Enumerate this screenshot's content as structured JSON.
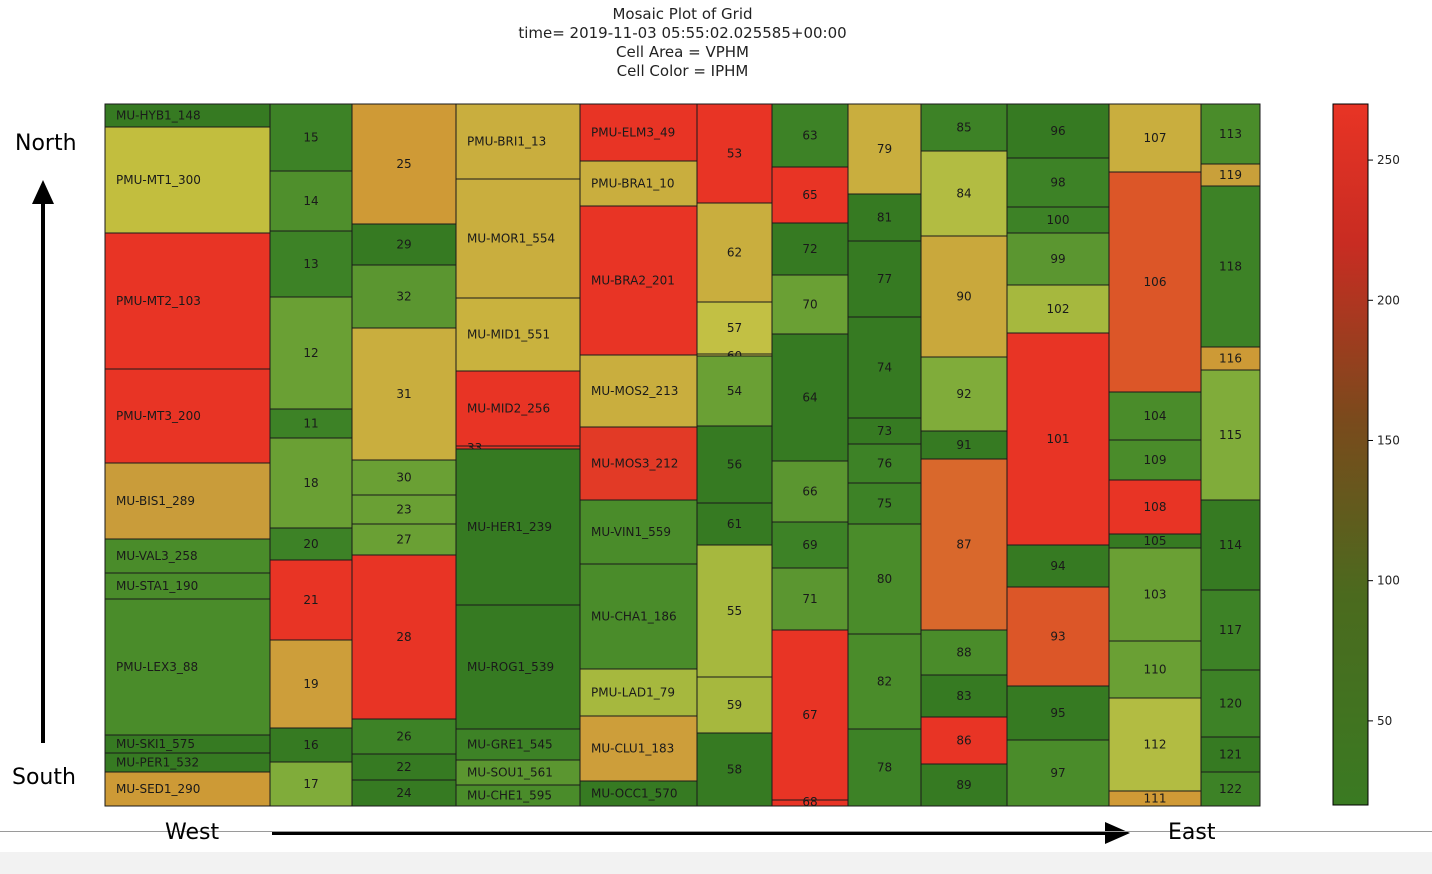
{
  "chart_data": {
    "type": "mosaic",
    "title_lines": [
      "Mosaic Plot of Grid",
      "time= 2019-11-03 05:55:02.025585+00:00",
      "Cell Area = VPHM",
      "Cell Color = IPHM"
    ],
    "colorbar": {
      "range": [
        20,
        270
      ],
      "ticks": [
        50,
        100,
        150,
        200,
        250
      ],
      "colors": [
        "#3a7a22",
        "#4b6a1e",
        "#7a4a1c",
        "#c82c22",
        "#e83425"
      ]
    },
    "columns": [
      {
        "cells": [
          {
            "label": "MU-HYB1_148",
            "color": "#367a22"
          },
          {
            "label": "PMU-MT1_300",
            "color": "#c2be3e"
          },
          {
            "label": "PMU-MT2_103",
            "color": "#e83425"
          },
          {
            "label": "PMU-MT3_200",
            "color": "#e83425"
          },
          {
            "label": "MU-BIS1_289",
            "color": "#c99c3a"
          },
          {
            "label": "MU-VAL3_258",
            "color": "#4a8c2a"
          },
          {
            "label": "MU-STA1_190",
            "color": "#4a8c2a"
          },
          {
            "label": "PMU-LEX3_88",
            "color": "#4a8c2a"
          },
          {
            "label": "MU-SKI1_575",
            "color": "#367a22"
          },
          {
            "label": "MU-PER1_532",
            "color": "#367a22"
          },
          {
            "label": "MU-SED1_290",
            "color": "#cd9a36"
          }
        ]
      },
      {
        "cells": [
          {
            "label": "15",
            "color": "#3d8226"
          },
          {
            "label": "14",
            "color": "#4f8f2c"
          },
          {
            "label": "13",
            "color": "#3d8226"
          },
          {
            "label": "12",
            "color": "#6aa034"
          },
          {
            "label": "11",
            "color": "#3d8226"
          },
          {
            "label": "18",
            "color": "#6aa034"
          },
          {
            "label": "20",
            "color": "#3d8226"
          },
          {
            "label": "21",
            "color": "#e83425"
          },
          {
            "label": "19",
            "color": "#cd9e3a"
          },
          {
            "label": "16",
            "color": "#367a22"
          },
          {
            "label": "17",
            "color": "#80ac3a"
          }
        ]
      },
      {
        "cells": [
          {
            "label": "25",
            "color": "#cf9a36"
          },
          {
            "label": "29",
            "color": "#367a22"
          },
          {
            "label": "32",
            "color": "#5b9630"
          },
          {
            "label": "31",
            "color": "#c9ae3e"
          },
          {
            "label": "30",
            "color": "#6aa034"
          },
          {
            "label": "23",
            "color": "#6aa034"
          },
          {
            "label": "27",
            "color": "#6aa034"
          },
          {
            "label": "28",
            "color": "#e83425"
          },
          {
            "label": "26",
            "color": "#3d8226"
          },
          {
            "label": "22",
            "color": "#367a22"
          },
          {
            "label": "24",
            "color": "#367a22"
          }
        ]
      },
      {
        "cells": [
          {
            "label": "PMU-BRI1_13",
            "color": "#c9ae3e"
          },
          {
            "label": "MU-MOR1_554",
            "color": "#c9ae3e"
          },
          {
            "label": "MU-MID1_551",
            "color": "#c9b23e"
          },
          {
            "label": "MU-MID2_256",
            "color": "#e83425"
          },
          {
            "label": "33",
            "color": "#e83425"
          },
          {
            "label": "MU-HER1_239",
            "color": "#367a22"
          },
          {
            "label": "MU-ROG1_539",
            "color": "#367a22"
          },
          {
            "label": "MU-GRE1_545",
            "color": "#3d8226"
          },
          {
            "label": "MU-SOU1_561",
            "color": "#5b9630"
          },
          {
            "label": "MU-CHE1_595",
            "color": "#4a8c2a"
          }
        ]
      },
      {
        "cells": [
          {
            "label": "PMU-ELM3_49",
            "color": "#e83425"
          },
          {
            "label": "PMU-BRA1_10",
            "color": "#c9ae3e"
          },
          {
            "label": "MU-BRA2_201",
            "color": "#e83425"
          },
          {
            "label": "MU-MOS2_213",
            "color": "#c9ae3e"
          },
          {
            "label": "MU-MOS3_212",
            "color": "#e23a26"
          },
          {
            "label": "MU-VIN1_559",
            "color": "#4a8c2a"
          },
          {
            "label": "MU-CHA1_186",
            "color": "#4a8c2a"
          },
          {
            "label": "PMU-LAD1_79",
            "color": "#a6b83e"
          },
          {
            "label": "MU-CLU1_183",
            "color": "#cd9e3a"
          },
          {
            "label": "MU-OCC1_570",
            "color": "#367a22"
          }
        ]
      },
      {
        "cells": [
          {
            "label": "53",
            "color": "#e83425"
          },
          {
            "label": "62",
            "color": "#c9ae3e"
          },
          {
            "label": "57",
            "color": "#c2c044"
          },
          {
            "label": "60",
            "color": "#c2c044"
          },
          {
            "label": "54",
            "color": "#6aa034"
          },
          {
            "label": "56",
            "color": "#367a22"
          },
          {
            "label": "61",
            "color": "#367a22"
          },
          {
            "label": "55",
            "color": "#a6b83e"
          },
          {
            "label": "59",
            "color": "#a6b83e"
          },
          {
            "label": "58",
            "color": "#367a22"
          }
        ]
      },
      {
        "cells": [
          {
            "label": "63",
            "color": "#3d8226"
          },
          {
            "label": "65",
            "color": "#e83425"
          },
          {
            "label": "72",
            "color": "#367a22"
          },
          {
            "label": "70",
            "color": "#6aa034"
          },
          {
            "label": "64",
            "color": "#367a22"
          },
          {
            "label": "66",
            "color": "#5b9630"
          },
          {
            "label": "69",
            "color": "#3d8226"
          },
          {
            "label": "71",
            "color": "#5b9630"
          },
          {
            "label": "67",
            "color": "#e83425"
          },
          {
            "label": "68",
            "color": "#e83425"
          }
        ]
      },
      {
        "cells": [
          {
            "label": "79",
            "color": "#c9ae3e"
          },
          {
            "label": "81",
            "color": "#367a22"
          },
          {
            "label": "77",
            "color": "#367a22"
          },
          {
            "label": "74",
            "color": "#367a22"
          },
          {
            "label": "73",
            "color": "#367a22"
          },
          {
            "label": "76",
            "color": "#3d8226"
          },
          {
            "label": "75",
            "color": "#3d8226"
          },
          {
            "label": "80",
            "color": "#4a8c2a"
          },
          {
            "label": "82",
            "color": "#4a8c2a"
          },
          {
            "label": "78",
            "color": "#3d8226"
          }
        ]
      },
      {
        "cells": [
          {
            "label": "85",
            "color": "#3d8226"
          },
          {
            "label": "84",
            "color": "#b2bc42"
          },
          {
            "label": "90",
            "color": "#c9a83c"
          },
          {
            "label": "92",
            "color": "#80ac3a"
          },
          {
            "label": "91",
            "color": "#367a22"
          },
          {
            "label": "87",
            "color": "#d9682c"
          },
          {
            "label": "88",
            "color": "#4a8c2a"
          },
          {
            "label": "83",
            "color": "#367a22"
          },
          {
            "label": "86",
            "color": "#e83425"
          },
          {
            "label": "89",
            "color": "#367a22"
          }
        ]
      },
      {
        "cells": [
          {
            "label": "96",
            "color": "#367a22"
          },
          {
            "label": "98",
            "color": "#3d8226"
          },
          {
            "label": "100",
            "color": "#3d8226"
          },
          {
            "label": "99",
            "color": "#5b9630"
          },
          {
            "label": "102",
            "color": "#a6b83e"
          },
          {
            "label": "101",
            "color": "#e83425"
          },
          {
            "label": "94",
            "color": "#367a22"
          },
          {
            "label": "93",
            "color": "#dc5628"
          },
          {
            "label": "95",
            "color": "#367a22"
          },
          {
            "label": "97",
            "color": "#4a8c2a"
          }
        ]
      },
      {
        "cells": [
          {
            "label": "107",
            "color": "#c9ae3e"
          },
          {
            "label": "106",
            "color": "#dc5628"
          },
          {
            "label": "104",
            "color": "#4a8c2a"
          },
          {
            "label": "109",
            "color": "#4a8c2a"
          },
          {
            "label": "108",
            "color": "#e83425"
          },
          {
            "label": "105",
            "color": "#367a22"
          },
          {
            "label": "103",
            "color": "#6aa034"
          },
          {
            "label": "110",
            "color": "#6aa034"
          },
          {
            "label": "112",
            "color": "#b2bc42"
          },
          {
            "label": "111",
            "color": "#d09a36"
          }
        ]
      },
      {
        "cells": [
          {
            "label": "113",
            "color": "#4a8c2a"
          },
          {
            "label": "119",
            "color": "#c9a03a"
          },
          {
            "label": "118",
            "color": "#3d8226"
          },
          {
            "label": "116",
            "color": "#cd9a36"
          },
          {
            "label": "115",
            "color": "#80ac3a"
          },
          {
            "label": "114",
            "color": "#367a22"
          },
          {
            "label": "117",
            "color": "#3d8226"
          },
          {
            "label": "120",
            "color": "#3d8226"
          },
          {
            "label": "121",
            "color": "#367a22"
          },
          {
            "label": "122",
            "color": "#3d8226"
          }
        ]
      }
    ]
  },
  "directions": {
    "north": "North",
    "south": "South",
    "west": "West",
    "east": "East"
  }
}
